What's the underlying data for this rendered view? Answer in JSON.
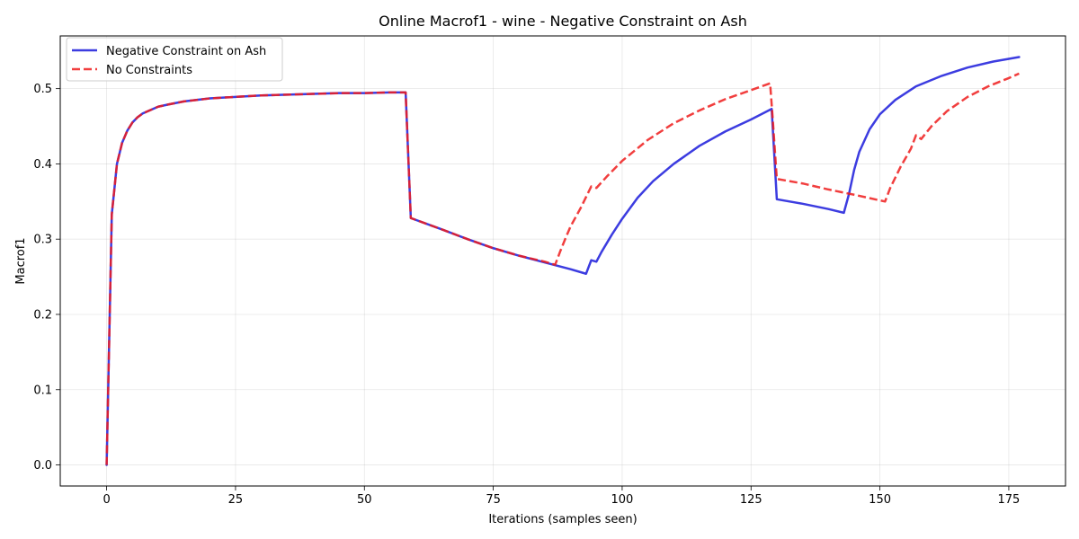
{
  "chart_data": {
    "type": "line",
    "title": "Online Macrof1 - wine - Negative Constraint on Ash",
    "xlabel": "Iterations (samples seen)",
    "ylabel": "Macrof1",
    "xlim": [
      -9,
      186
    ],
    "ylim": [
      -0.028,
      0.57
    ],
    "xticks": [
      0,
      25,
      50,
      75,
      100,
      125,
      150,
      175
    ],
    "yticks": [
      0.0,
      0.1,
      0.2,
      0.3,
      0.4,
      0.5
    ],
    "grid": true,
    "legend_position": "top-left",
    "series": [
      {
        "name": "Negative Constraint on Ash",
        "color": "#1a1adb",
        "style": "solid",
        "points": [
          [
            0,
            0.0
          ],
          [
            1,
            0.333
          ],
          [
            2,
            0.4
          ],
          [
            3,
            0.428
          ],
          [
            4,
            0.444
          ],
          [
            5,
            0.455
          ],
          [
            6,
            0.462
          ],
          [
            7,
            0.467
          ],
          [
            8,
            0.47
          ],
          [
            10,
            0.476
          ],
          [
            12,
            0.479
          ],
          [
            15,
            0.483
          ],
          [
            20,
            0.487
          ],
          [
            25,
            0.489
          ],
          [
            30,
            0.491
          ],
          [
            35,
            0.492
          ],
          [
            40,
            0.493
          ],
          [
            45,
            0.494
          ],
          [
            50,
            0.494
          ],
          [
            55,
            0.495
          ],
          [
            58,
            0.495
          ],
          [
            59,
            0.328
          ],
          [
            65,
            0.313
          ],
          [
            70,
            0.3
          ],
          [
            75,
            0.288
          ],
          [
            80,
            0.278
          ],
          [
            85,
            0.269
          ],
          [
            90,
            0.26
          ],
          [
            93,
            0.254
          ],
          [
            94,
            0.272
          ],
          [
            95,
            0.27
          ],
          [
            96,
            0.283
          ],
          [
            98,
            0.306
          ],
          [
            100,
            0.327
          ],
          [
            103,
            0.355
          ],
          [
            106,
            0.377
          ],
          [
            110,
            0.4
          ],
          [
            115,
            0.424
          ],
          [
            120,
            0.443
          ],
          [
            125,
            0.459
          ],
          [
            129,
            0.473
          ],
          [
            130,
            0.353
          ],
          [
            135,
            0.347
          ],
          [
            140,
            0.34
          ],
          [
            143,
            0.335
          ],
          [
            144,
            0.36
          ],
          [
            145,
            0.392
          ],
          [
            146,
            0.416
          ],
          [
            148,
            0.446
          ],
          [
            150,
            0.466
          ],
          [
            153,
            0.485
          ],
          [
            157,
            0.503
          ],
          [
            162,
            0.517
          ],
          [
            167,
            0.528
          ],
          [
            172,
            0.536
          ],
          [
            177,
            0.542
          ]
        ]
      },
      {
        "name": "No Constraints",
        "color": "#ee1c1c",
        "style": "dashed",
        "points": [
          [
            0,
            0.0
          ],
          [
            1,
            0.333
          ],
          [
            2,
            0.4
          ],
          [
            3,
            0.428
          ],
          [
            4,
            0.444
          ],
          [
            5,
            0.455
          ],
          [
            6,
            0.462
          ],
          [
            7,
            0.467
          ],
          [
            8,
            0.47
          ],
          [
            10,
            0.476
          ],
          [
            12,
            0.479
          ],
          [
            15,
            0.483
          ],
          [
            20,
            0.487
          ],
          [
            25,
            0.489
          ],
          [
            30,
            0.491
          ],
          [
            35,
            0.492
          ],
          [
            40,
            0.493
          ],
          [
            45,
            0.494
          ],
          [
            50,
            0.494
          ],
          [
            55,
            0.495
          ],
          [
            58,
            0.495
          ],
          [
            59,
            0.328
          ],
          [
            65,
            0.313
          ],
          [
            70,
            0.3
          ],
          [
            75,
            0.288
          ],
          [
            80,
            0.278
          ],
          [
            85,
            0.27
          ],
          [
            87,
            0.266
          ],
          [
            88,
            0.284
          ],
          [
            89,
            0.301
          ],
          [
            90,
            0.317
          ],
          [
            92,
            0.342
          ],
          [
            94,
            0.37
          ],
          [
            95,
            0.368
          ],
          [
            97,
            0.383
          ],
          [
            100,
            0.404
          ],
          [
            105,
            0.432
          ],
          [
            110,
            0.454
          ],
          [
            115,
            0.471
          ],
          [
            120,
            0.486
          ],
          [
            125,
            0.498
          ],
          [
            128.7,
            0.507
          ],
          [
            129.2,
            0.46
          ],
          [
            130,
            0.38
          ],
          [
            135,
            0.374
          ],
          [
            140,
            0.366
          ],
          [
            145,
            0.359
          ],
          [
            151,
            0.35
          ],
          [
            152,
            0.368
          ],
          [
            154,
            0.396
          ],
          [
            156,
            0.42
          ],
          [
            157,
            0.438
          ],
          [
            158,
            0.433
          ],
          [
            160,
            0.45
          ],
          [
            163,
            0.47
          ],
          [
            167,
            0.489
          ],
          [
            171,
            0.503
          ],
          [
            175,
            0.514
          ],
          [
            177,
            0.52
          ]
        ]
      }
    ]
  }
}
